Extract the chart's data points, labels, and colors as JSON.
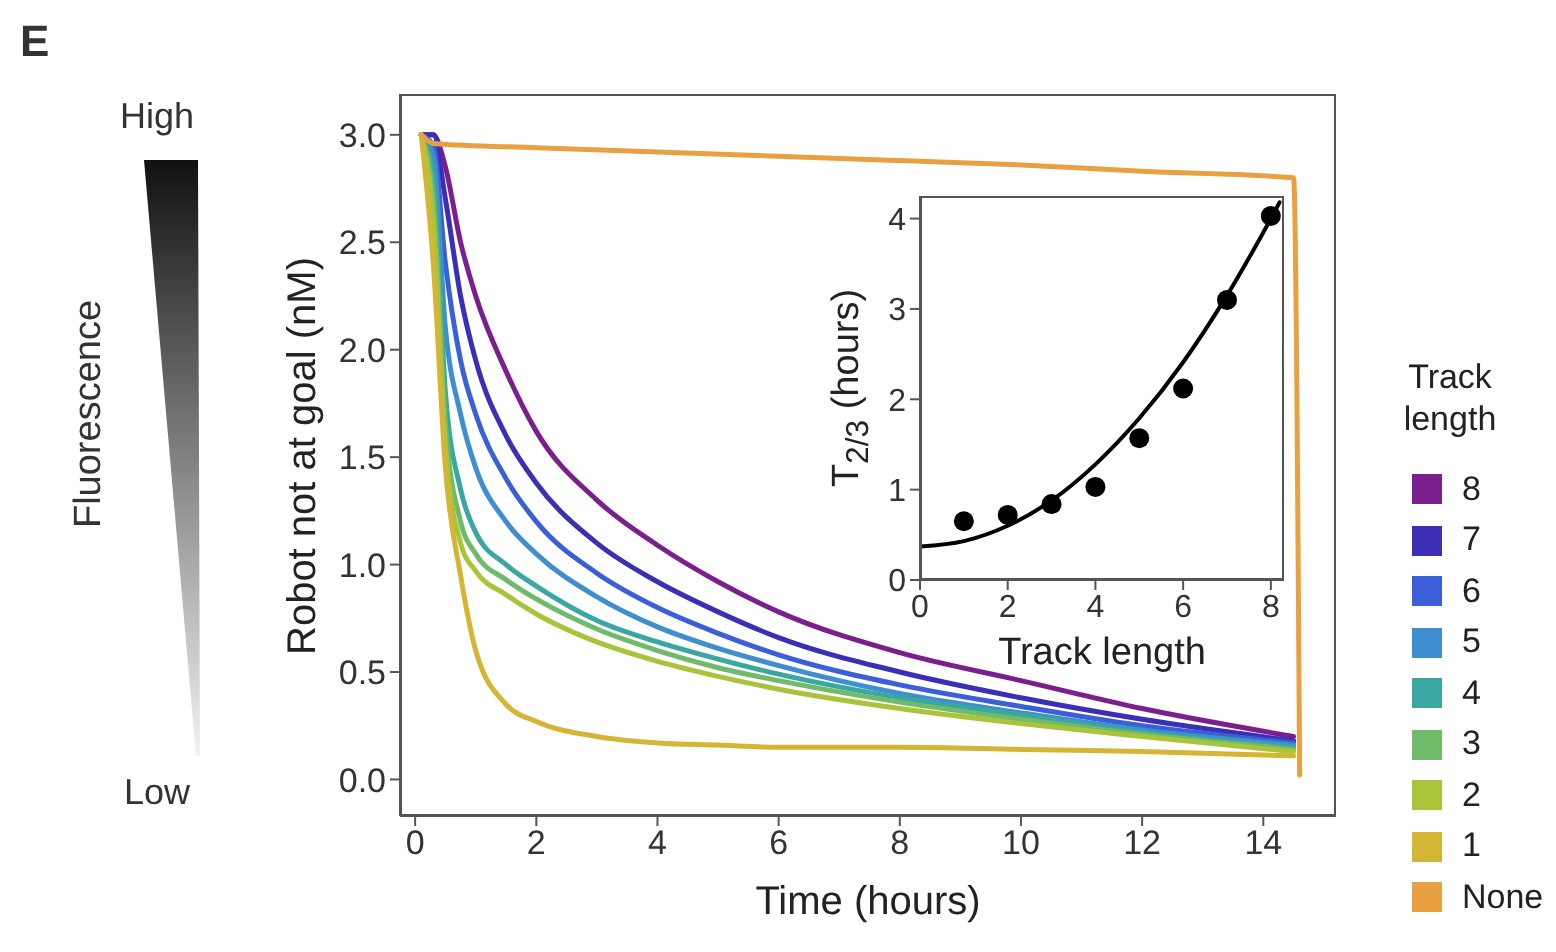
{
  "chart_data": [
    {
      "type": "line",
      "xlabel": "Time (hours)",
      "ylabel": "Robot not at goal (nM)",
      "legend_title": "Track length",
      "legend": "right",
      "marker": "none",
      "line_style": "solid",
      "grid": false,
      "annotations": [
        "E",
        "High",
        "Fluorescence",
        "Low"
      ],
      "xlim": [
        -0.25,
        15.2
      ],
      "xticks": [
        0,
        2,
        4,
        6,
        8,
        10,
        12,
        14
      ],
      "ylim": [
        -0.17,
        3.19
      ],
      "yticks": [
        {
          "value": 0,
          "label": "0.0"
        },
        {
          "value": 0.5,
          "label": "0.5"
        },
        {
          "value": 1,
          "label": "1.0"
        },
        {
          "value": 1.5,
          "label": "1.5"
        },
        {
          "value": 2,
          "label": "2.0"
        },
        {
          "value": 2.5,
          "label": "2.5"
        },
        {
          "value": 3,
          "label": "3.0"
        }
      ],
      "x": [
        0.1,
        0.3,
        0.5,
        0.75,
        1,
        1.5,
        2,
        3,
        4,
        5,
        6,
        8,
        10,
        12,
        14.5
      ],
      "series": [
        {
          "name": "8",
          "color": "#7b1f8f",
          "values": [
            3.0,
            3.0,
            2.85,
            2.5,
            2.25,
            1.9,
            1.62,
            1.3,
            1.09,
            0.92,
            0.78,
            0.59,
            0.46,
            0.33,
            0.2
          ]
        },
        {
          "name": "7",
          "color": "#3a2fb5",
          "values": [
            3.0,
            3.0,
            2.7,
            2.25,
            1.95,
            1.6,
            1.38,
            1.1,
            0.92,
            0.78,
            0.66,
            0.5,
            0.38,
            0.28,
            0.18
          ]
        },
        {
          "name": "6",
          "color": "#3a5fd8",
          "values": [
            3.0,
            2.95,
            2.4,
            1.95,
            1.7,
            1.4,
            1.2,
            0.96,
            0.8,
            0.68,
            0.58,
            0.44,
            0.34,
            0.25,
            0.17
          ]
        },
        {
          "name": "5",
          "color": "#3f8fd0",
          "values": [
            3.0,
            2.9,
            2.1,
            1.7,
            1.45,
            1.2,
            1.05,
            0.85,
            0.71,
            0.61,
            0.53,
            0.4,
            0.31,
            0.23,
            0.16
          ]
        },
        {
          "name": "4",
          "color": "#3aa8a0",
          "values": [
            3.0,
            2.8,
            1.8,
            1.35,
            1.15,
            1.0,
            0.9,
            0.74,
            0.64,
            0.56,
            0.49,
            0.38,
            0.3,
            0.22,
            0.15
          ]
        },
        {
          "name": "3",
          "color": "#6fbb6a",
          "values": [
            3.0,
            2.7,
            1.65,
            1.2,
            1.05,
            0.93,
            0.84,
            0.7,
            0.6,
            0.52,
            0.46,
            0.36,
            0.28,
            0.21,
            0.14
          ]
        },
        {
          "name": "2",
          "color": "#a9c43a",
          "values": [
            3.0,
            2.6,
            1.55,
            1.1,
            0.97,
            0.86,
            0.77,
            0.64,
            0.55,
            0.48,
            0.42,
            0.33,
            0.26,
            0.2,
            0.13
          ]
        },
        {
          "name": "1",
          "color": "#d4b634",
          "values": [
            3.0,
            2.4,
            1.45,
            0.95,
            0.6,
            0.35,
            0.27,
            0.2,
            0.17,
            0.16,
            0.15,
            0.15,
            0.14,
            0.13,
            0.11
          ]
        },
        {
          "name": "None",
          "color": "#e8a040",
          "x": [
            0.1,
            0.3,
            2,
            4,
            6,
            8,
            10,
            12,
            14.5,
            14.6
          ],
          "values": [
            3.0,
            2.96,
            2.94,
            2.92,
            2.9,
            2.88,
            2.86,
            2.83,
            2.8,
            0.02
          ]
        }
      ]
    },
    {
      "type": "scatter",
      "xlabel": "Track length",
      "ylabel": "T$_{2/3}$ (hours)",
      "legend": false,
      "grid": false,
      "xlim": [
        0,
        8.3
      ],
      "xticks": [
        0,
        2,
        4,
        6,
        8
      ],
      "ylim": [
        0,
        4.25
      ],
      "yticks": [
        0,
        1,
        2,
        3,
        4
      ],
      "series": [
        {
          "type": "scatter",
          "color": "#000000",
          "marker": "circle",
          "x": [
            1,
            2,
            3,
            4,
            5,
            6,
            7,
            8
          ],
          "values": [
            0.65,
            0.72,
            0.84,
            1.03,
            1.57,
            2.12,
            3.1,
            4.03
          ]
        },
        {
          "type": "line",
          "color": "#000000",
          "marker": "none",
          "x": [
            0,
            1,
            2,
            3,
            4,
            5,
            6,
            7,
            8,
            8.2
          ],
          "values": [
            0.37,
            0.43,
            0.6,
            0.88,
            1.28,
            1.79,
            2.41,
            3.15,
            4.0,
            4.18
          ]
        }
      ]
    }
  ]
}
